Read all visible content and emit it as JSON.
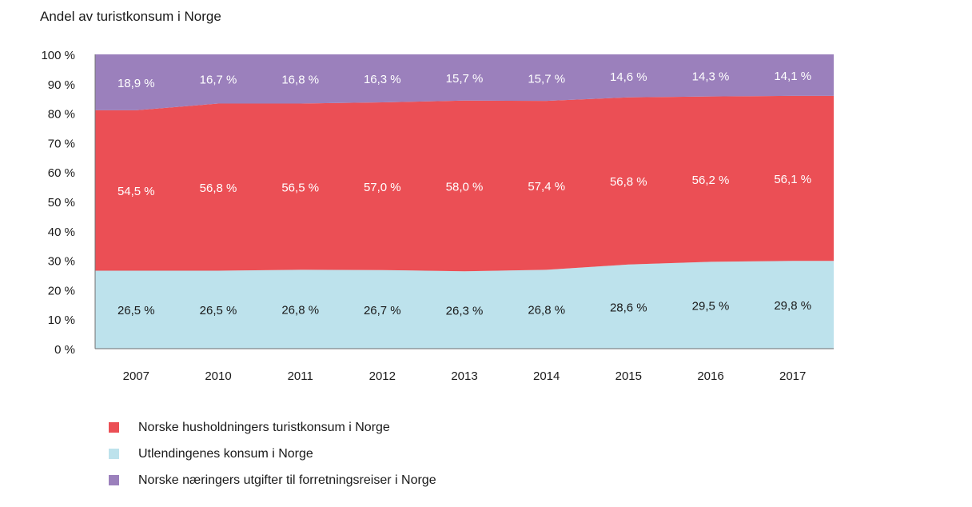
{
  "chart_data": {
    "type": "area",
    "stacked": true,
    "title": "Andel av turistkonsum i Norge",
    "categories": [
      "2007",
      "2010",
      "2011",
      "2012",
      "2013",
      "2014",
      "2015",
      "2016",
      "2017"
    ],
    "ylim": [
      0,
      100
    ],
    "yticks": [
      "0 %",
      "10 %",
      "20 %",
      "30 %",
      "40 %",
      "50 %",
      "60 %",
      "70 %",
      "80 %",
      "90 %",
      "100 %"
    ],
    "grid": false,
    "legend_position": "bottom-left",
    "series": [
      {
        "name": "Utlendingenes konsum i Norge",
        "color": "#bde2ec",
        "label_color": "#1a1a1a",
        "values": [
          26.5,
          26.5,
          26.8,
          26.7,
          26.3,
          26.8,
          28.6,
          29.5,
          29.8
        ],
        "labels": [
          "26,5 %",
          "26,5 %",
          "26,8 %",
          "26,7 %",
          "26,3 %",
          "26,8 %",
          "28,6 %",
          "29,5 %",
          "29,8 %"
        ]
      },
      {
        "name": "Norske husholdningers turistkonsum i Norge",
        "color": "#eb4f55",
        "label_color": "#ffffff",
        "values": [
          54.5,
          56.8,
          56.5,
          57.0,
          58.0,
          57.4,
          56.8,
          56.2,
          56.1
        ],
        "labels": [
          "54,5 %",
          "56,8 %",
          "56,5 %",
          "57,0 %",
          "58,0 %",
          "57,4 %",
          "56,8 %",
          "56,2 %",
          "56,1 %"
        ]
      },
      {
        "name": "Norske næringers utgifter til forretningsreiser i Norge",
        "color": "#9b80bc",
        "label_color": "#ffffff",
        "values": [
          18.9,
          16.7,
          16.8,
          16.3,
          15.7,
          15.7,
          14.6,
          14.3,
          14.1
        ],
        "labels": [
          "18,9 %",
          "16,7 %",
          "16,8 %",
          "16,3 %",
          "15,7 %",
          "15,7 %",
          "14,6 %",
          "14,3 %",
          "14,1 %"
        ]
      }
    ],
    "legend_order": [
      1,
      0,
      2
    ]
  }
}
